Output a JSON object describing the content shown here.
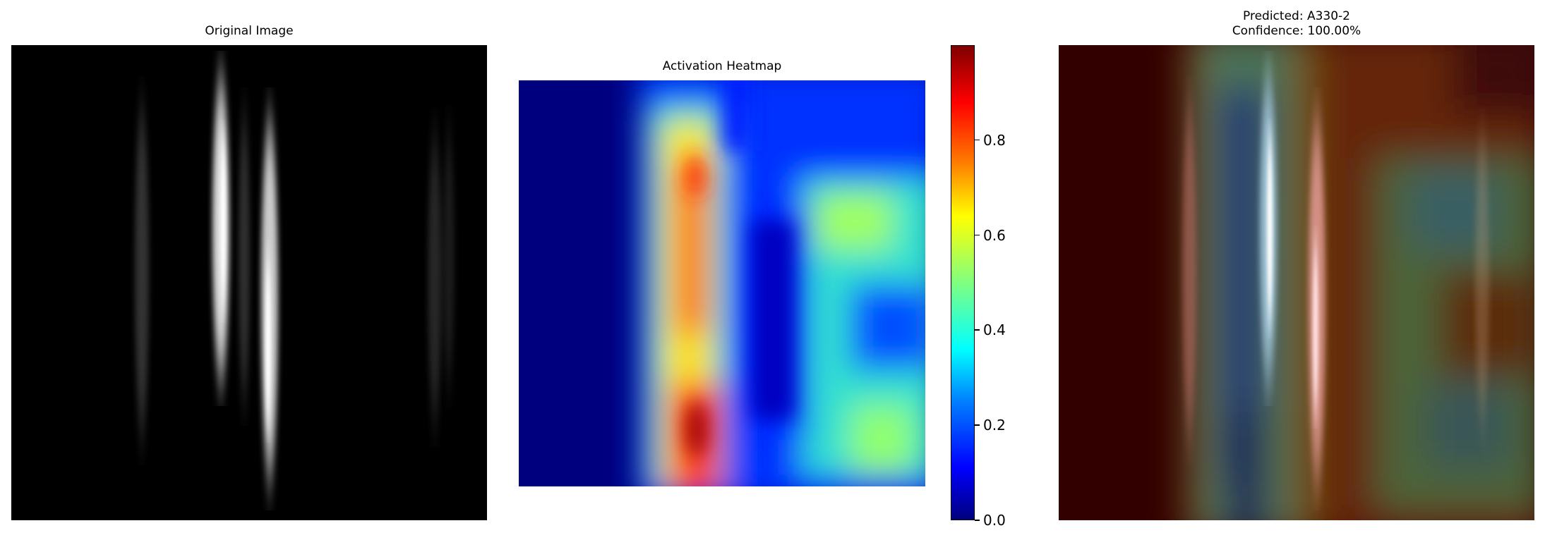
{
  "chart_data": [
    {
      "type": "heatmap",
      "title": "Original Image",
      "colormap": "gray",
      "axes_visible": false
    },
    {
      "type": "heatmap",
      "title": "Activation Heatmap",
      "colormap": "jet",
      "axes_visible": false,
      "colorbar": {
        "range": [
          0.0,
          1.0
        ],
        "ticks": [
          0.0,
          0.2,
          0.4,
          0.6,
          0.8
        ],
        "tick_labels": [
          "0.0",
          "0.2",
          "0.4",
          "0.6",
          "0.8"
        ]
      }
    },
    {
      "type": "heatmap",
      "title_lines": [
        "Predicted: A330-2",
        "Confidence: 100.00%"
      ],
      "colormap": "jet overlay on gray",
      "axes_visible": false
    }
  ]
}
